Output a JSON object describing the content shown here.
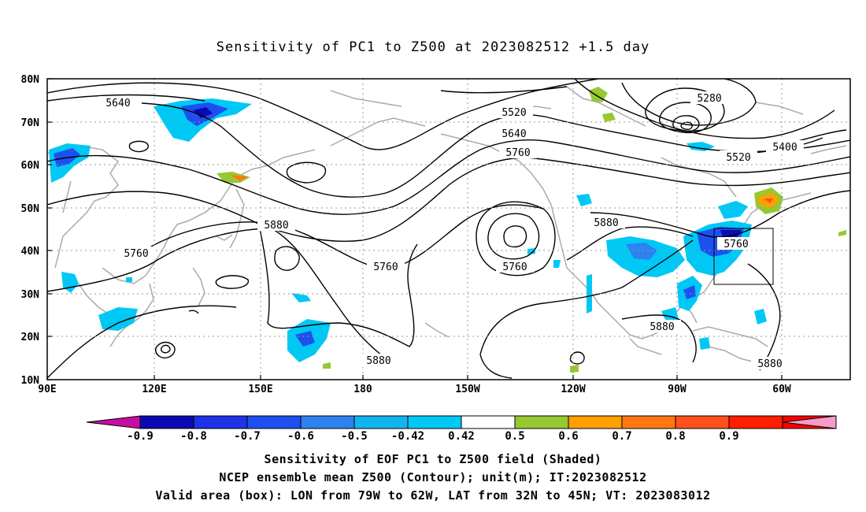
{
  "title": "Sensitivity of PC1 to Z500 at 2023082512 +1.5 day",
  "map": {
    "lat_labels": [
      "80N",
      "70N",
      "60N",
      "50N",
      "40N",
      "30N",
      "20N",
      "10N"
    ],
    "lon_labels": [
      "90E",
      "120E",
      "150E",
      "180",
      "150W",
      "120W",
      "90W",
      "60W"
    ],
    "contour_labels": [
      {
        "text": "5640",
        "name": "contour-label-5640-west"
      },
      {
        "text": "5520",
        "name": "contour-label-5520-north"
      },
      {
        "text": "5640",
        "name": "contour-label-5640-north"
      },
      {
        "text": "5760",
        "name": "contour-label-5760-north"
      },
      {
        "text": "5280",
        "name": "contour-label-5280"
      },
      {
        "text": "5400",
        "name": "contour-label-5400"
      },
      {
        "text": "5520",
        "name": "contour-label-5520-east"
      },
      {
        "text": "5880",
        "name": "contour-label-5880-pacific"
      },
      {
        "text": "5760",
        "name": "contour-label-5760-west"
      },
      {
        "text": "5760",
        "name": "contour-label-5760-central"
      },
      {
        "text": "5760",
        "name": "contour-label-5760-low"
      },
      {
        "text": "5880",
        "name": "contour-label-5880-america"
      },
      {
        "text": "5760",
        "name": "contour-label-5760-box"
      },
      {
        "text": "5880",
        "name": "contour-label-5880-gulf"
      },
      {
        "text": "5880",
        "name": "contour-label-5880-south"
      },
      {
        "text": "5880",
        "name": "contour-label-5880-caribbean"
      }
    ]
  },
  "colorbar": {
    "labels": [
      "-0.9",
      "-0.8",
      "-0.7",
      "-0.6",
      "-0.5",
      "-0.42",
      "0.42",
      "0.5",
      "0.6",
      "0.7",
      "0.8",
      "0.9"
    ],
    "colors": [
      "#c40fa0",
      "#0a0ab4",
      "#1e32e6",
      "#1e50f0",
      "#2d82f0",
      "#12b4f0",
      "#00c8f5",
      "#ffffff",
      "#96c832",
      "#ffa000",
      "#ff7814",
      "#ff501e",
      "#ff1e00",
      "#ff0000",
      "#f59bc8"
    ]
  },
  "captions": {
    "line1": "Sensitivity of EOF PC1 to Z500 field (Shaded)",
    "line2": "NCEP ensemble mean Z500 (Contour); unit(m); IT:2023082512",
    "line3": "Valid area (box): LON from 79W to 62W, LAT from 32N to 45N; VT: 2023083012"
  }
}
